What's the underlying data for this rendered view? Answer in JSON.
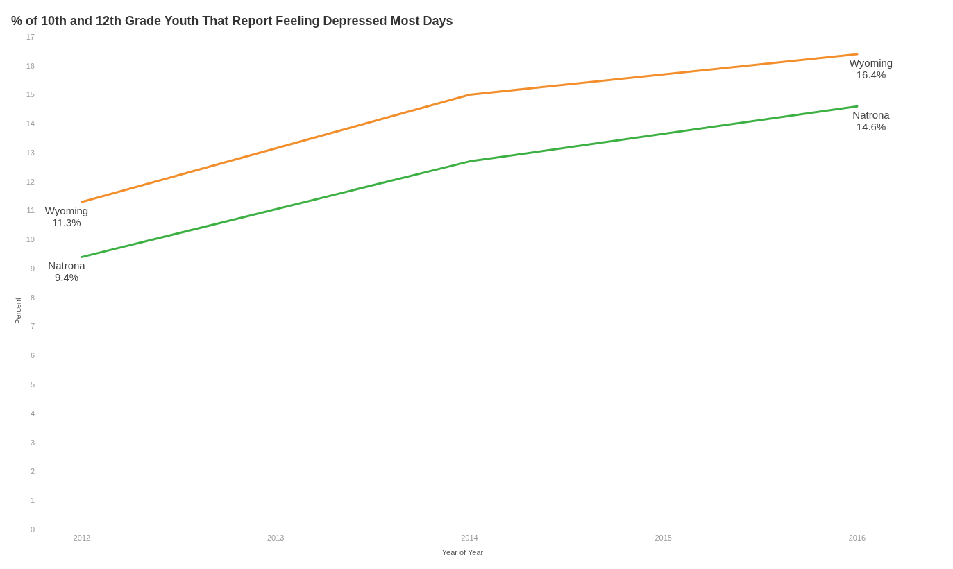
{
  "chart_data": {
    "type": "line",
    "title": "% of 10th and 12th Grade Youth That Report Feeling Depressed Most Days",
    "xlabel": "Year of Year",
    "ylabel": "Percent",
    "x": [
      2012,
      2014,
      2016
    ],
    "series": [
      {
        "name": "Wyoming",
        "color": "#f28e2b",
        "values": [
          11.3,
          15.0,
          16.4
        ],
        "value_labels": [
          "11.3%",
          null,
          "16.4%"
        ]
      },
      {
        "name": "Natrona",
        "color": "#3cb043",
        "values": [
          9.4,
          12.7,
          14.6
        ],
        "value_labels": [
          "9.4%",
          null,
          "14.6%"
        ]
      }
    ],
    "xlim": [
      2012,
      2016
    ],
    "xticks": [
      2012,
      2013,
      2014,
      2015,
      2016
    ],
    "ylim": [
      0,
      17
    ],
    "yticks": [
      0,
      1,
      2,
      3,
      4,
      5,
      6,
      7,
      8,
      9,
      10,
      11,
      12,
      13,
      14,
      15,
      16,
      17
    ],
    "grid": false,
    "legend": false,
    "marker": "none",
    "line_style": "solid"
  }
}
